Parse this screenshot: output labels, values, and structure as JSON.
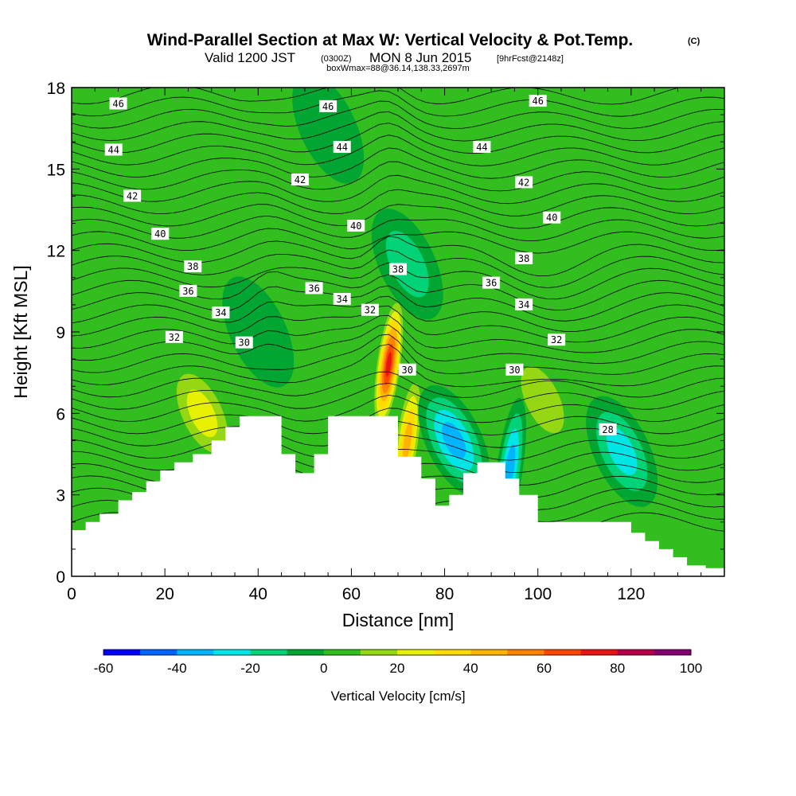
{
  "chart_data": {
    "type": "heatmap",
    "title": "Wind-Parallel Section at Max W: Vertical Velocity & Pot.Temp.",
    "title_mark": "(C)",
    "subtitle": {
      "valid": "Valid 1200 JST",
      "utc": "(0300Z)",
      "date": "MON 8 Jun 2015",
      "forecast": "[9hrFcst@2148z]"
    },
    "annotation": "boxWmax=88@36.14,138.33,2697m",
    "xlabel": "Distance [nm]",
    "ylabel": "Height [Kft MSL]",
    "xlim": [
      0,
      140
    ],
    "ylim": [
      0,
      18
    ],
    "x_ticks": [
      "0",
      "20",
      "40",
      "60",
      "80",
      "100",
      "120"
    ],
    "y_ticks": [
      "0",
      "3",
      "6",
      "9",
      "12",
      "15",
      "18"
    ],
    "colorbar": {
      "label": "Vertical Velocity [cm/s]",
      "ticks": [
        "-60",
        "-40",
        "-20",
        "0",
        "20",
        "40",
        "60",
        "80",
        "100"
      ],
      "levels": [
        -60,
        -50,
        -40,
        -30,
        -20,
        -10,
        0,
        10,
        20,
        30,
        40,
        50,
        60,
        70,
        80,
        90,
        100
      ],
      "colors": [
        "#0000ff",
        "#0064ff",
        "#00b4ff",
        "#00e6e6",
        "#00d278",
        "#00a532",
        "#32be1e",
        "#96d714",
        "#e6f000",
        "#ffdc00",
        "#ffb400",
        "#ff8200",
        "#ff4600",
        "#e61414",
        "#b40046",
        "#82006e",
        "#500096"
      ]
    },
    "terrain_profile": {
      "x_nm": [
        0,
        3,
        6,
        10,
        13,
        16,
        19,
        22,
        26,
        30,
        33,
        36,
        40,
        45,
        48,
        52,
        55,
        60,
        63,
        67,
        70,
        75,
        78,
        81,
        84,
        87,
        90,
        93,
        96,
        100,
        104,
        108,
        112,
        116,
        120,
        123,
        126,
        129,
        132,
        136,
        140
      ],
      "height_kft": [
        1.7,
        2.0,
        2.3,
        2.8,
        3.1,
        3.5,
        3.9,
        4.2,
        4.5,
        5.0,
        5.5,
        5.9,
        5.9,
        4.5,
        3.8,
        4.5,
        5.9,
        5.9,
        5.9,
        5.9,
        4.4,
        3.6,
        2.6,
        3.0,
        3.8,
        4.2,
        4.2,
        3.6,
        3.0,
        2.0,
        2.0,
        2.0,
        2.0,
        2.0,
        1.6,
        1.3,
        1.0,
        0.7,
        0.4,
        0.3,
        0.3
      ]
    },
    "theta_contours_c": [
      28,
      30,
      32,
      34,
      36,
      38,
      40,
      42,
      44,
      46
    ],
    "theta_labels": [
      {
        "text": "46",
        "x": 10,
        "y": 17.4
      },
      {
        "text": "46",
        "x": 55,
        "y": 17.3
      },
      {
        "text": "46",
        "x": 100,
        "y": 17.5
      },
      {
        "text": "44",
        "x": 9,
        "y": 15.7
      },
      {
        "text": "44",
        "x": 58,
        "y": 15.8
      },
      {
        "text": "44",
        "x": 88,
        "y": 15.8
      },
      {
        "text": "42",
        "x": 13,
        "y": 14.0
      },
      {
        "text": "42",
        "x": 49,
        "y": 14.6
      },
      {
        "text": "42",
        "x": 97,
        "y": 14.5
      },
      {
        "text": "40",
        "x": 19,
        "y": 12.6
      },
      {
        "text": "40",
        "x": 61,
        "y": 12.9
      },
      {
        "text": "40",
        "x": 103,
        "y": 13.2
      },
      {
        "text": "38",
        "x": 26,
        "y": 11.4
      },
      {
        "text": "38",
        "x": 70,
        "y": 11.3
      },
      {
        "text": "38",
        "x": 97,
        "y": 11.7
      },
      {
        "text": "36",
        "x": 25,
        "y": 10.5
      },
      {
        "text": "36",
        "x": 52,
        "y": 10.6
      },
      {
        "text": "36",
        "x": 90,
        "y": 10.8
      },
      {
        "text": "34",
        "x": 32,
        "y": 9.7
      },
      {
        "text": "34",
        "x": 58,
        "y": 10.2
      },
      {
        "text": "34",
        "x": 97,
        "y": 10.0
      },
      {
        "text": "32",
        "x": 22,
        "y": 8.8
      },
      {
        "text": "32",
        "x": 64,
        "y": 9.8
      },
      {
        "text": "32",
        "x": 104,
        "y": 8.7
      },
      {
        "text": "30",
        "x": 37,
        "y": 8.6
      },
      {
        "text": "30",
        "x": 72,
        "y": 7.6
      },
      {
        "text": "30",
        "x": 95,
        "y": 7.6
      },
      {
        "text": "28",
        "x": 115,
        "y": 5.4
      }
    ],
    "vertical_velocity_features": [
      {
        "name": "updraft-core",
        "x": 68,
        "y": 7.8,
        "value": 88
      },
      {
        "name": "updraft-east",
        "x": 72,
        "y": 5.0,
        "value": 55
      },
      {
        "name": "updraft-ridge",
        "x": 28,
        "y": 6.0,
        "value": 30
      },
      {
        "name": "updraft-lee",
        "x": 101,
        "y": 6.5,
        "value": 28
      },
      {
        "name": "updraft-upper",
        "x": 48,
        "y": 12.5,
        "value": 15
      },
      {
        "name": "updraft-mid",
        "x": 43,
        "y": 7.8,
        "value": 15
      },
      {
        "name": "updraft-west",
        "x": 10,
        "y": 4.5,
        "value": 12
      },
      {
        "name": "downdraft-valley",
        "x": 82,
        "y": 5.0,
        "value": -40
      },
      {
        "name": "downdraft-east",
        "x": 118,
        "y": 4.6,
        "value": -30
      },
      {
        "name": "downdraft-lee",
        "x": 94,
        "y": 4.0,
        "value": -45
      },
      {
        "name": "downdraft-upper",
        "x": 72,
        "y": 11.5,
        "value": -25
      },
      {
        "name": "downdraft-mid",
        "x": 55,
        "y": 16.5,
        "value": -12
      },
      {
        "name": "downdraft-sw",
        "x": 40,
        "y": 9.0,
        "value": -15
      }
    ]
  }
}
